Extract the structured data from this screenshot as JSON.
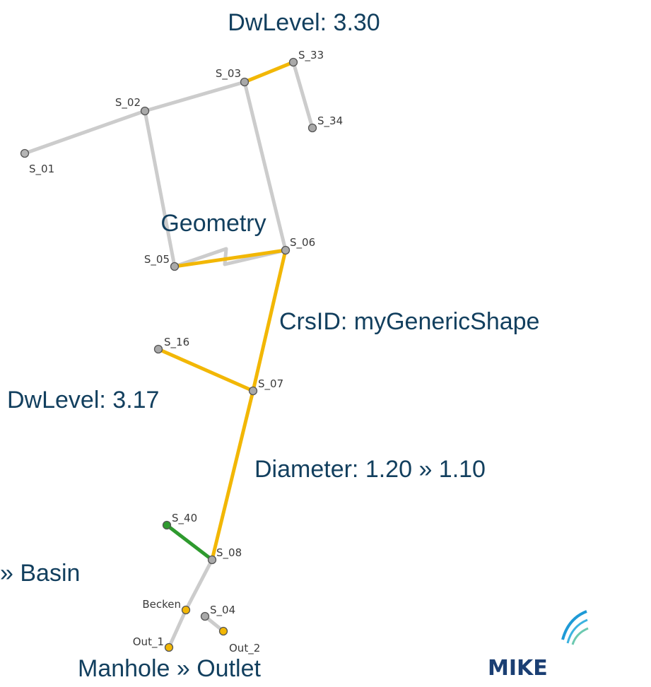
{
  "nodes": [
    {
      "label": "S_01"
    },
    {
      "label": "S_02"
    },
    {
      "label": "S_03"
    },
    {
      "label": "S_33"
    },
    {
      "label": "S_34"
    },
    {
      "label": "S_05"
    },
    {
      "label": "S_06"
    },
    {
      "label": "S_16"
    },
    {
      "label": "S_07"
    },
    {
      "label": "S_40"
    },
    {
      "label": "S_08"
    },
    {
      "label": "Becken"
    },
    {
      "label": "S_04"
    },
    {
      "label": "Out_1"
    },
    {
      "label": "Out_2"
    }
  ],
  "annotations": [
    "DwLevel: 3.30",
    "Geometry",
    "CrsID: myGenericShape",
    "DwLevel: 3.17",
    "Diameter: 1.20 » 1.10",
    "» Basin",
    "Manhole » Outlet"
  ],
  "logo": "MIKE"
}
